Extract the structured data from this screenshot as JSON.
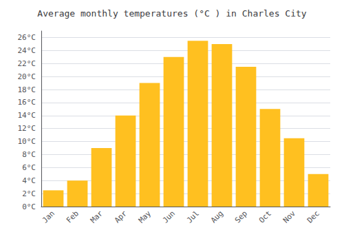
{
  "chart_data": {
    "type": "bar",
    "title": "Average monthly temperatures (°C ) in Charles City",
    "categories": [
      "Jan",
      "Feb",
      "Mar",
      "Apr",
      "May",
      "Jun",
      "Jul",
      "Aug",
      "Sep",
      "Oct",
      "Nov",
      "Dec"
    ],
    "values": [
      2.5,
      4.0,
      9.0,
      14.0,
      19.0,
      23.0,
      25.5,
      25.0,
      21.5,
      15.0,
      10.5,
      5.0
    ],
    "color": "#FFC020",
    "ylim": [
      0,
      27
    ],
    "yticks": [
      {
        "value": 0,
        "label": "0°C"
      },
      {
        "value": 2,
        "label": "2°C"
      },
      {
        "value": 4,
        "label": "4°C"
      },
      {
        "value": 6,
        "label": "6°C"
      },
      {
        "value": 8,
        "label": "8°C"
      },
      {
        "value": 10,
        "label": "10°C"
      },
      {
        "value": 12,
        "label": "12°C"
      },
      {
        "value": 14,
        "label": "14°C"
      },
      {
        "value": 16,
        "label": "16°C"
      },
      {
        "value": 18,
        "label": "18°C"
      },
      {
        "value": 20,
        "label": "20°C"
      },
      {
        "value": 22,
        "label": "22°C"
      },
      {
        "value": 24,
        "label": "24°C"
      },
      {
        "value": 26,
        "label": "26°C"
      }
    ],
    "grid": true
  }
}
